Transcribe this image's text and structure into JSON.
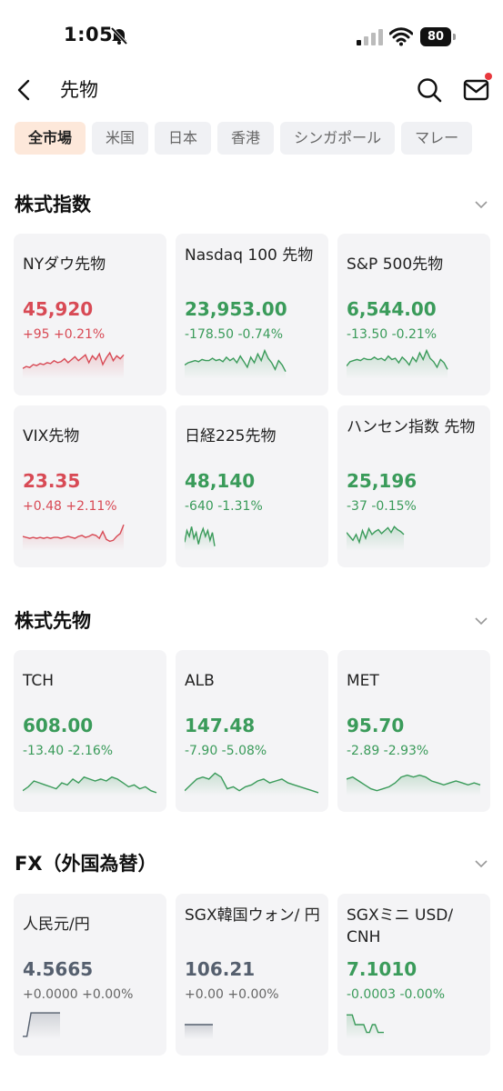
{
  "status": {
    "time": "1:05",
    "battery": "80"
  },
  "header": {
    "title": "先物"
  },
  "tabs": [
    "全市場",
    "米国",
    "日本",
    "香港",
    "シンガポール",
    "マレー"
  ],
  "colors": {
    "up": "#d84a55",
    "down": "#3a9b5a",
    "neutral": "#555f6e",
    "active_tab_bg": "#fde8da"
  },
  "sections": [
    {
      "title": "株式指数",
      "cards": [
        {
          "name": "NYダウ先物",
          "price": "45,920",
          "change": "+95 +0.21%",
          "dir": "up",
          "spark": [
            18,
            16,
            17,
            14,
            15,
            13,
            14,
            12,
            13,
            10,
            12,
            11,
            8,
            12,
            9,
            6,
            10,
            7,
            4,
            12,
            5,
            9,
            3,
            14,
            7,
            2,
            10,
            5,
            8,
            4
          ]
        },
        {
          "name": "Nasdaq 100 先物",
          "price": "23,953.00",
          "change": "-178.50 -0.74%",
          "dir": "down",
          "spark": [
            16,
            14,
            13,
            12,
            13,
            11,
            12,
            12,
            10,
            12,
            11,
            13,
            9,
            12,
            10,
            14,
            8,
            13,
            18,
            9,
            14,
            6,
            12,
            3,
            10,
            14,
            20,
            12,
            16,
            22
          ]
        },
        {
          "name": "S&P 500先物",
          "price": "6,544.00",
          "change": "-13.50 -0.21%",
          "dir": "down",
          "spark": [
            17,
            13,
            12,
            11,
            12,
            10,
            11,
            11,
            9,
            11,
            10,
            12,
            8,
            11,
            10,
            14,
            9,
            12,
            16,
            9,
            13,
            5,
            11,
            3,
            10,
            13,
            18,
            11,
            14,
            20
          ]
        },
        {
          "name": "VIX先物",
          "price": "23.35",
          "change": "+0.48 +2.11%",
          "dir": "up",
          "spark": [
            14,
            15,
            16,
            15,
            16,
            15,
            16,
            15,
            16,
            15,
            15,
            16,
            15,
            14,
            15,
            16,
            14,
            13,
            15,
            14,
            12,
            13,
            16,
            9,
            17,
            19,
            18,
            14,
            11,
            2
          ]
        },
        {
          "name": "日経225先物",
          "price": "48,140",
          "change": "-640 -1.31%",
          "dir": "down",
          "spark": [
            20,
            8,
            14,
            4,
            16,
            10,
            22,
            12,
            6,
            14,
            8,
            18,
            10,
            24
          ]
        },
        {
          "name": "ハンセン指数 先物",
          "price": "25,196",
          "change": "-37 -0.15%",
          "dir": "down",
          "spark": [
            10,
            14,
            18,
            12,
            20,
            8,
            16,
            6,
            12,
            9,
            7,
            11,
            8,
            5,
            10,
            4,
            7,
            9,
            12
          ]
        }
      ]
    },
    {
      "title": "株式先物",
      "cards": [
        {
          "name": "TCH",
          "price": "608.00",
          "change": "-13.40 -2.16%",
          "dir": "down",
          "spark": [
            24,
            20,
            14,
            16,
            18,
            20,
            22,
            16,
            18,
            12,
            16,
            10,
            12,
            14,
            12,
            14,
            10,
            12,
            16,
            20,
            18,
            22,
            20,
            24,
            26
          ]
        },
        {
          "name": "ALB",
          "price": "147.48",
          "change": "-7.90 -5.08%",
          "dir": "down",
          "spark": [
            24,
            18,
            12,
            10,
            12,
            6,
            10,
            22,
            20,
            24,
            20,
            18,
            14,
            12,
            16,
            14,
            12,
            16,
            18,
            20,
            22,
            24,
            26
          ]
        },
        {
          "name": "MET",
          "price": "95.70",
          "change": "-2.89 -2.93%",
          "dir": "down",
          "spark": [
            12,
            10,
            14,
            18,
            22,
            24,
            22,
            20,
            16,
            10,
            8,
            10,
            8,
            10,
            14,
            16,
            18,
            16,
            14,
            16,
            18,
            16,
            18
          ]
        }
      ]
    },
    {
      "title": "FX（外国為替）",
      "cards": [
        {
          "name": "人民元/円",
          "price": "4.5665",
          "change": "+0.0000 +0.00%",
          "dir": "neutral",
          "spark": [
            26,
            26,
            2,
            2,
            2,
            2,
            2,
            2,
            2,
            2
          ]
        },
        {
          "name": "SGX韓国ウォン/ 円",
          "price": "106.21",
          "change": "+0.00 +0.00%",
          "dir": "neutral",
          "spark": [
            14,
            14,
            14,
            14,
            14,
            14,
            14
          ]
        },
        {
          "name": "SGXミニ USD/ CNH",
          "price": "7.1010",
          "change": "-0.0003 -0.00%",
          "dir": "down",
          "spark": [
            4,
            4,
            4,
            14,
            14,
            14,
            14,
            22,
            22,
            14,
            14,
            22,
            22,
            22
          ]
        }
      ]
    }
  ]
}
